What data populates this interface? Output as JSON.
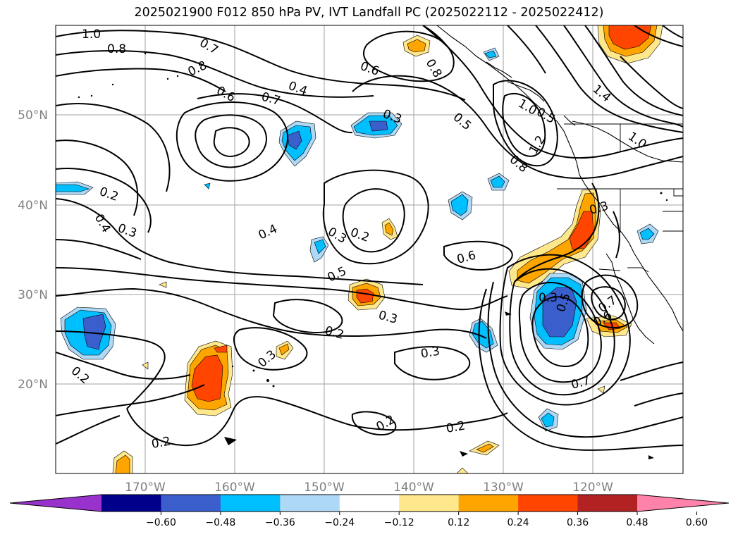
{
  "title": "2025021900 F012 850 hPa PV, IVT Landfall PC (2025022112 - 2025022412)",
  "map": {
    "lat_labels": [
      "50°N",
      "40°N",
      "30°N",
      "20°N"
    ],
    "lon_labels": [
      "170°W",
      "160°W",
      "150°W",
      "140°W",
      "130°W",
      "120°W"
    ]
  },
  "contour_labels": [
    "1.0",
    "0.8",
    "0.7",
    "0.8",
    "0.6",
    "0.7",
    "0.4",
    "0.3",
    "0.6",
    "0.8",
    "0.5",
    "0.8",
    "1.0",
    "0.5",
    "1.2",
    "1.0",
    "1.4",
    "0.2",
    "0.4",
    "0.3",
    "0.4",
    "0.3",
    "0.2",
    "0.3",
    "0.6",
    "0.5",
    "0.3",
    "0.2",
    "0.3",
    "0.3",
    "0.2",
    "0.2",
    "0.2",
    "0.2",
    "0.7",
    "0.5",
    "0.7",
    "0.6",
    "0.3"
  ],
  "colorbar": {
    "ticks": [
      "−0.60",
      "−0.48",
      "−0.36",
      "−0.24",
      "−0.12",
      "0.12",
      "0.24",
      "0.36",
      "0.48",
      "0.60"
    ],
    "colors": [
      "#9932cc",
      "#00008b",
      "#3a5fcd",
      "#00bfff",
      "#add8f6",
      "#ffffff",
      "#ffe78c",
      "#ffa500",
      "#ff4500",
      "#b22222",
      "#ff82ab"
    ]
  }
}
